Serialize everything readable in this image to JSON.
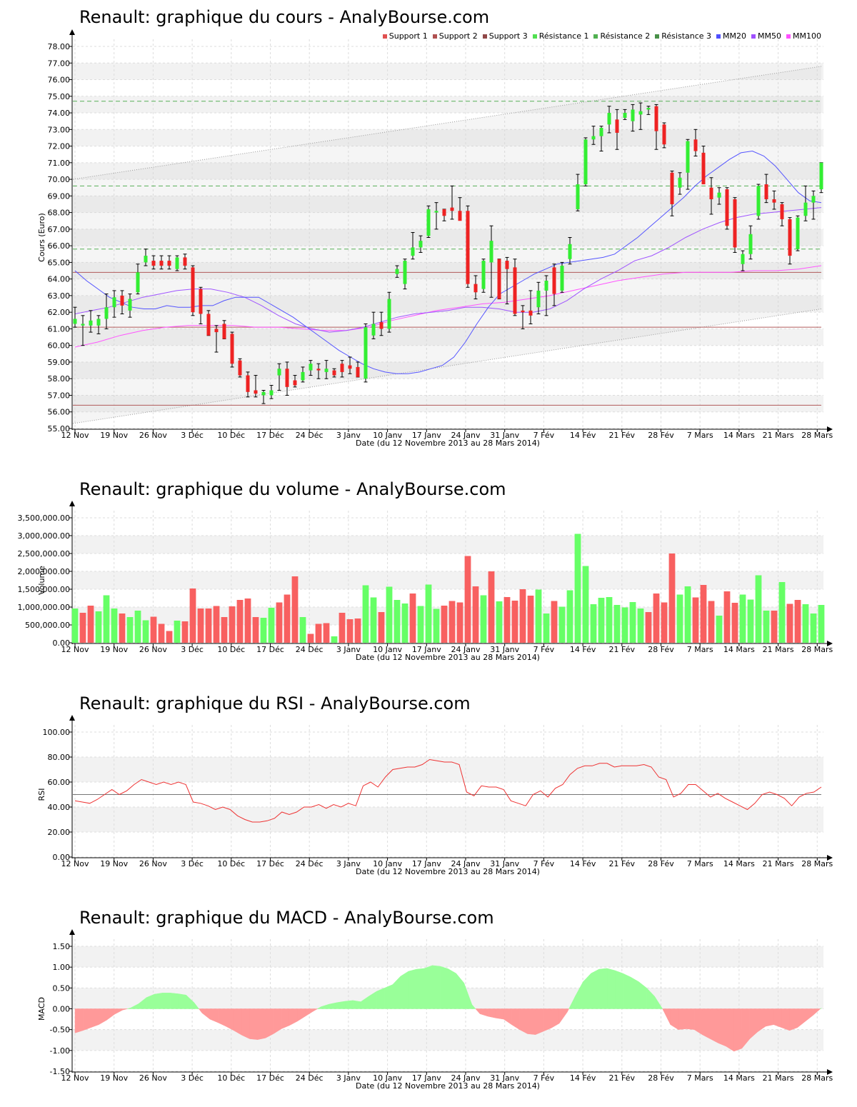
{
  "titles": {
    "price": "Renault: graphique du cours - AnalyBourse.com",
    "volume": "Renault: graphique du volume - AnalyBourse.com",
    "rsi": "Renault: graphique du RSI - AnalyBourse.com",
    "macd": "Renault: graphique du MACD - AnalyBourse.com"
  },
  "x_axis": {
    "title": "Date (du 12 Novembre 2013 au 28 Mars 2014)",
    "tick_labels": [
      "12 Nov",
      "19 Nov",
      "26 Nov",
      "3 Déc",
      "10 Déc",
      "17 Déc",
      "24 Déc",
      "3 Janv",
      "10 Janv",
      "17 Janv",
      "24 Janv",
      "31 Janv",
      "7 Fév",
      "14 Fév",
      "21 Fév",
      "28 Fév",
      "7 Mars",
      "14 Mars",
      "21 Mars",
      "28 Mars"
    ]
  },
  "legend": [
    {
      "label": "Support 1",
      "color": "#e05050"
    },
    {
      "label": "Support 2",
      "color": "#b05050"
    },
    {
      "label": "Support 3",
      "color": "#904848"
    },
    {
      "label": "Résistance 1",
      "color": "#50e050"
    },
    {
      "label": "Résistance 2",
      "color": "#50b050"
    },
    {
      "label": "Résistance 3",
      "color": "#489048"
    },
    {
      "label": "MM20",
      "color": "#5050ff"
    },
    {
      "label": "MM50",
      "color": "#a050ff"
    },
    {
      "label": "MM100",
      "color": "#ff50ff"
    }
  ],
  "chart_data": [
    {
      "type": "candlestick",
      "title": "Renault: graphique du cours - AnalyBourse.com",
      "ylabel": "Cours (Euro)",
      "xlabel": "Date (du 12 Novembre 2013 au 28 Mars 2014)",
      "ylim": [
        55,
        78
      ],
      "ytick_labels": [
        "55.00",
        "56.00",
        "57.00",
        "58.00",
        "59.00",
        "60.00",
        "61.00",
        "62.00",
        "63.00",
        "64.00",
        "65.00",
        "66.00",
        "67.00",
        "68.00",
        "69.00",
        "70.00",
        "71.00",
        "72.00",
        "73.00",
        "74.00",
        "75.00",
        "76.00",
        "77.00",
        "78.00"
      ],
      "yticks": [
        55,
        56,
        57,
        58,
        59,
        60,
        61,
        62,
        63,
        64,
        65,
        66,
        67,
        68,
        69,
        70,
        71,
        72,
        73,
        74,
        75,
        76,
        77,
        78
      ],
      "support_lines": [
        64.4,
        61.1,
        56.4
      ],
      "resistance_lines": [
        74.7,
        69.6,
        65.8
      ],
      "trend_channel": {
        "upper": [
          70.0,
          76.8
        ],
        "lower": [
          55.3,
          62.2
        ]
      },
      "ohlc": [
        [
          61.3,
          62.3,
          61.1,
          61.6
        ],
        [
          61.2,
          61.8,
          60.0,
          61.3
        ],
        [
          61.2,
          62.1,
          60.8,
          61.5
        ],
        [
          61.2,
          61.8,
          60.7,
          61.6
        ],
        [
          61.6,
          63.1,
          61.0,
          62.3
        ],
        [
          62.3,
          63.3,
          61.7,
          62.9
        ],
        [
          63.0,
          63.3,
          61.9,
          62.4
        ],
        [
          62.1,
          63.1,
          61.7,
          62.8
        ],
        [
          63.2,
          64.9,
          63.1,
          64.4
        ],
        [
          65.0,
          65.8,
          64.8,
          65.4
        ],
        [
          65.1,
          65.4,
          64.6,
          64.8
        ],
        [
          65.1,
          65.4,
          64.6,
          64.8
        ],
        [
          65.1,
          65.4,
          64.6,
          64.8
        ],
        [
          64.6,
          65.4,
          64.5,
          65.3
        ],
        [
          65.3,
          65.5,
          64.6,
          64.8
        ],
        [
          64.7,
          64.8,
          61.8,
          62.0
        ],
        [
          63.4,
          63.5,
          61.3,
          61.9
        ],
        [
          61.9,
          62.1,
          60.6,
          60.6
        ],
        [
          61.0,
          61.2,
          59.6,
          60.8
        ],
        [
          61.3,
          61.5,
          60.4,
          60.4
        ],
        [
          60.7,
          60.8,
          58.7,
          58.9
        ],
        [
          59.1,
          59.2,
          58.1,
          58.2
        ],
        [
          58.2,
          58.4,
          56.9,
          57.2
        ],
        [
          57.3,
          58.2,
          56.9,
          57.1
        ],
        [
          57.0,
          57.3,
          56.5,
          57.2
        ],
        [
          57.0,
          57.6,
          56.8,
          57.3
        ],
        [
          58.2,
          58.9,
          57.3,
          58.6
        ],
        [
          58.6,
          59.0,
          57.0,
          57.5
        ],
        [
          57.9,
          58.2,
          57.5,
          57.6
        ],
        [
          57.9,
          58.7,
          57.8,
          58.4
        ],
        [
          58.5,
          59.1,
          58.2,
          58.9
        ],
        [
          58.6,
          58.9,
          58.0,
          58.5
        ],
        [
          58.4,
          59.1,
          58.0,
          58.6
        ],
        [
          58.5,
          58.6,
          58.1,
          58.2
        ],
        [
          58.9,
          59.1,
          58.1,
          58.4
        ],
        [
          58.8,
          59.3,
          58.3,
          58.6
        ],
        [
          58.7,
          59.0,
          58.1,
          58.1
        ],
        [
          58.0,
          61.3,
          57.8,
          61.1
        ],
        [
          60.6,
          62.0,
          60.4,
          61.3
        ],
        [
          61.4,
          62.0,
          60.6,
          61.0
        ],
        [
          61.0,
          63.2,
          60.8,
          62.8
        ],
        [
          64.3,
          64.8,
          64.1,
          64.6
        ],
        [
          63.7,
          65.2,
          63.4,
          65.1
        ],
        [
          65.4,
          66.8,
          65.2,
          65.9
        ],
        [
          65.9,
          66.6,
          65.6,
          66.3
        ],
        [
          66.6,
          68.4,
          66.5,
          68.2
        ],
        [
          68.0,
          68.6,
          67.0,
          68.1
        ],
        [
          68.2,
          68.2,
          67.5,
          67.8
        ],
        [
          68.3,
          69.6,
          67.6,
          68.1
        ],
        [
          68.1,
          68.9,
          67.7,
          67.5
        ],
        [
          68.1,
          68.4,
          63.5,
          63.7
        ],
        [
          63.7,
          64.2,
          62.8,
          63.2
        ],
        [
          63.4,
          65.2,
          63.2,
          65.1
        ],
        [
          65.0,
          67.2,
          62.9,
          66.3
        ],
        [
          65.2,
          65.2,
          62.8,
          62.8
        ],
        [
          65.1,
          65.3,
          62.5,
          64.6
        ],
        [
          64.7,
          65.2,
          61.8,
          61.9
        ],
        [
          62.1,
          62.4,
          61.0,
          62.0
        ],
        [
          62.1,
          63.3,
          61.3,
          61.8
        ],
        [
          62.3,
          63.8,
          61.9,
          63.3
        ],
        [
          63.3,
          64.2,
          61.8,
          63.9
        ],
        [
          64.7,
          64.9,
          62.4,
          63.1
        ],
        [
          63.3,
          65.0,
          63.2,
          64.8
        ],
        [
          65.2,
          66.5,
          64.9,
          66.1
        ],
        [
          68.2,
          70.3,
          68.1,
          69.7
        ],
        [
          69.7,
          72.5,
          69.6,
          72.4
        ],
        [
          72.4,
          73.2,
          72.1,
          72.6
        ],
        [
          72.6,
          73.2,
          71.7,
          73.1
        ],
        [
          73.3,
          74.4,
          72.8,
          74.0
        ],
        [
          73.6,
          74.2,
          71.8,
          72.8
        ],
        [
          73.7,
          74.2,
          73.6,
          74.0
        ],
        [
          73.5,
          74.5,
          72.9,
          74.2
        ],
        [
          73.9,
          74.6,
          73.0,
          74.1
        ],
        [
          74.2,
          74.4,
          73.9,
          74.3
        ],
        [
          74.4,
          74.5,
          71.8,
          72.9
        ],
        [
          73.3,
          73.4,
          71.9,
          72.1
        ],
        [
          70.4,
          70.5,
          67.8,
          68.5
        ],
        [
          69.5,
          70.4,
          69.1,
          70.1
        ],
        [
          70.4,
          72.4,
          69.4,
          72.3
        ],
        [
          72.4,
          73.0,
          71.4,
          71.7
        ],
        [
          71.6,
          72.0,
          69.8,
          69.7
        ],
        [
          69.5,
          70.1,
          67.9,
          68.8
        ],
        [
          68.9,
          69.5,
          68.5,
          69.2
        ],
        [
          69.4,
          69.5,
          67.0,
          67.2
        ],
        [
          68.8,
          68.9,
          65.6,
          65.9
        ],
        [
          64.9,
          65.7,
          64.5,
          65.5
        ],
        [
          65.5,
          67.2,
          65.2,
          66.7
        ],
        [
          67.8,
          69.7,
          67.6,
          69.6
        ],
        [
          69.7,
          70.3,
          68.6,
          68.8
        ],
        [
          68.8,
          69.3,
          68.2,
          68.6
        ],
        [
          68.5,
          68.6,
          67.2,
          67.6
        ],
        [
          67.6,
          67.7,
          64.9,
          65.4
        ],
        [
          65.8,
          67.8,
          65.7,
          67.7
        ],
        [
          67.8,
          69.6,
          67.5,
          68.6
        ],
        [
          68.6,
          69.3,
          67.6,
          69.0
        ],
        [
          69.4,
          71.0,
          69.2,
          71.0
        ]
      ],
      "mm20": [
        64.5,
        63.9,
        63.4,
        62.9,
        62.6,
        62.3,
        62.2,
        62.2,
        62.4,
        62.3,
        62.3,
        62.4,
        62.4,
        62.7,
        62.9,
        62.9,
        62.9,
        62.5,
        62.1,
        61.7,
        61.2,
        60.7,
        60.2,
        59.7,
        59.3,
        58.9,
        58.6,
        58.4,
        58.3,
        58.3,
        58.4,
        58.6,
        58.8,
        59.3,
        60.2,
        61.3,
        62.3,
        63.1,
        63.5,
        63.9,
        64.3,
        64.6,
        64.9,
        65.0,
        65.1,
        65.2,
        65.3,
        65.5,
        66.0,
        66.5,
        67.1,
        67.7,
        68.3,
        68.9,
        69.6,
        70.2,
        70.7,
        71.2,
        71.6,
        71.7,
        71.4,
        70.8,
        70.0,
        69.2,
        68.7,
        68.6
      ],
      "mm50": [
        61.9,
        62.1,
        62.3,
        62.6,
        62.9,
        63.1,
        63.3,
        63.4,
        63.4,
        63.2,
        62.9,
        62.4,
        61.8,
        61.3,
        61.0,
        60.8,
        60.9,
        61.1,
        61.4,
        61.7,
        61.9,
        62.0,
        62.1,
        62.3,
        62.3,
        62.2,
        62.0,
        62.0,
        62.2,
        62.7,
        63.4,
        64.0,
        64.5,
        65.1,
        65.4,
        65.9,
        66.5,
        67.0,
        67.4,
        67.7,
        67.9,
        68.0,
        68.1,
        68.2,
        68.3
      ],
      "mm100": [
        59.9,
        60.2,
        60.6,
        60.9,
        61.1,
        61.2,
        61.2,
        61.2,
        61.1,
        61.1,
        61.0,
        60.9,
        60.9,
        61.1,
        61.5,
        61.8,
        62.1,
        62.3,
        62.5,
        62.6,
        62.8,
        63.0,
        63.3,
        63.6,
        63.9,
        64.1,
        64.3,
        64.4,
        64.4,
        64.4,
        64.5,
        64.5,
        64.6,
        64.8
      ]
    },
    {
      "type": "bar",
      "title": "Renault: graphique du volume - AnalyBourse.com",
      "ylabel": "Volume",
      "xlabel": "Date (du 12 Novembre 2013 au 28 Mars 2014)",
      "ylim": [
        0,
        3500000
      ],
      "ytick_labels": [
        "0.00",
        "500,000.00",
        "1,000,000.00",
        "1,500,000.00",
        "2,000,000.00",
        "2,500,000.00",
        "3,000,000.00",
        "3,500,000.00"
      ],
      "yticks": [
        0,
        500000,
        1000000,
        1500000,
        2000000,
        2500000,
        3000000,
        3500000
      ],
      "values": [
        960000,
        840000,
        1040000,
        880000,
        1330000,
        960000,
        820000,
        720000,
        900000,
        630000,
        730000,
        530000,
        330000,
        620000,
        600000,
        1520000,
        960000,
        960000,
        1030000,
        720000,
        1020000,
        1200000,
        1240000,
        720000,
        700000,
        980000,
        1130000,
        1350000,
        1860000,
        720000,
        250000,
        530000,
        550000,
        180000,
        840000,
        660000,
        680000,
        1610000,
        1270000,
        860000,
        1570000,
        1200000,
        1100000,
        1380000,
        1030000,
        1630000,
        950000,
        1040000,
        1170000,
        1130000,
        2430000,
        1580000,
        1330000,
        2000000,
        1160000,
        1280000,
        1180000,
        1500000,
        1320000,
        1490000,
        820000,
        1170000,
        1010000,
        1470000,
        3050000,
        2150000,
        1080000,
        1260000,
        1280000,
        1060000,
        990000,
        1140000,
        960000,
        860000,
        1380000,
        1130000,
        2500000,
        1350000,
        1580000,
        1270000,
        1620000,
        1170000,
        760000,
        1440000,
        1120000,
        1350000,
        1210000,
        1890000,
        900000,
        900000,
        1700000,
        1090000,
        1200000,
        1080000,
        820000,
        1060000
      ],
      "colors": [
        "g",
        "r",
        "r",
        "g",
        "g",
        "g",
        "r",
        "g",
        "g",
        "g",
        "r",
        "r",
        "r",
        "g",
        "r",
        "r",
        "r",
        "r",
        "r",
        "r",
        "r",
        "r",
        "r",
        "r",
        "g",
        "g",
        "r",
        "r",
        "r",
        "g",
        "r",
        "r",
        "r",
        "g",
        "r",
        "r",
        "r",
        "g",
        "g",
        "r",
        "g",
        "g",
        "g",
        "r",
        "g",
        "g",
        "g",
        "r",
        "r",
        "r",
        "r",
        "r",
        "g",
        "r",
        "g",
        "r",
        "r",
        "r",
        "r",
        "g",
        "g",
        "r",
        "g",
        "g",
        "g",
        "g",
        "g",
        "g",
        "g",
        "g",
        "g",
        "g",
        "g",
        "r",
        "r",
        "r",
        "r",
        "g",
        "g",
        "r",
        "r",
        "r",
        "g",
        "r",
        "r",
        "g",
        "g",
        "g",
        "g",
        "r",
        "g",
        "r",
        "r",
        "g",
        "g",
        "g"
      ]
    },
    {
      "type": "line",
      "title": "Renault: graphique du RSI - AnalyBourse.com",
      "ylabel": "RSI",
      "xlabel": "Date (du 12 Novembre 2013 au 28 Mars 2014)",
      "ylim": [
        0,
        100
      ],
      "ytick_labels": [
        "0.00",
        "20.00",
        "40.00",
        "60.00",
        "80.00",
        "100.00"
      ],
      "yticks": [
        0,
        20,
        40,
        60,
        80,
        100
      ],
      "reference_line": 50,
      "values": [
        45,
        44,
        43,
        46,
        50,
        54,
        50,
        53,
        58,
        62,
        60,
        58,
        60,
        58,
        60,
        58,
        44,
        43,
        41,
        38,
        40,
        38,
        33,
        30,
        28,
        28,
        29,
        31,
        36,
        34,
        36,
        40,
        40,
        42,
        39,
        42,
        40,
        43,
        41,
        57,
        60,
        56,
        64,
        70,
        71,
        72,
        72,
        74,
        78,
        77,
        76,
        76,
        74,
        52,
        49,
        57,
        56,
        56,
        54,
        45,
        43,
        41,
        50,
        53,
        48,
        55,
        58,
        66,
        71,
        73,
        73,
        75,
        75,
        72,
        73,
        73,
        73,
        74,
        72,
        64,
        62,
        48,
        51,
        58,
        58,
        53,
        48,
        51,
        47,
        44,
        41,
        38,
        43,
        50,
        52,
        50,
        47,
        41,
        48,
        51,
        52,
        56
      ]
    },
    {
      "type": "area",
      "title": "Renault: graphique du MACD - AnalyBourse.com",
      "ylabel": "MACD",
      "xlabel": "Date (du 12 Novembre 2013 au 28 Mars 2014)",
      "ylim": [
        -1.5,
        1.5
      ],
      "ytick_labels": [
        "-1.50",
        "-1.00",
        "-0.50",
        "0.00",
        "0.50",
        "1.00",
        "1.50"
      ],
      "yticks": [
        -1.5,
        -1.0,
        -0.5,
        0.0,
        0.5,
        1.0,
        1.5
      ],
      "values": [
        -0.58,
        -0.52,
        -0.45,
        -0.38,
        -0.27,
        -0.13,
        -0.03,
        0.02,
        0.12,
        0.27,
        0.35,
        0.38,
        0.38,
        0.36,
        0.33,
        0.15,
        -0.1,
        -0.25,
        -0.33,
        -0.42,
        -0.52,
        -0.63,
        -0.72,
        -0.74,
        -0.7,
        -0.6,
        -0.48,
        -0.4,
        -0.3,
        -0.18,
        -0.06,
        0.05,
        0.11,
        0.15,
        0.18,
        0.2,
        0.17,
        0.3,
        0.42,
        0.5,
        0.58,
        0.78,
        0.9,
        0.95,
        0.97,
        1.04,
        1.02,
        0.96,
        0.85,
        0.62,
        0.1,
        -0.12,
        -0.18,
        -0.22,
        -0.25,
        -0.38,
        -0.5,
        -0.6,
        -0.62,
        -0.54,
        -0.46,
        -0.35,
        -0.08,
        0.3,
        0.65,
        0.85,
        0.95,
        0.97,
        0.92,
        0.85,
        0.76,
        0.65,
        0.5,
        0.3,
        0.0,
        -0.38,
        -0.5,
        -0.48,
        -0.5,
        -0.62,
        -0.72,
        -0.82,
        -0.9,
        -1.02,
        -0.95,
        -0.72,
        -0.55,
        -0.42,
        -0.38,
        -0.45,
        -0.52,
        -0.45,
        -0.3,
        -0.15,
        0.02
      ]
    }
  ]
}
